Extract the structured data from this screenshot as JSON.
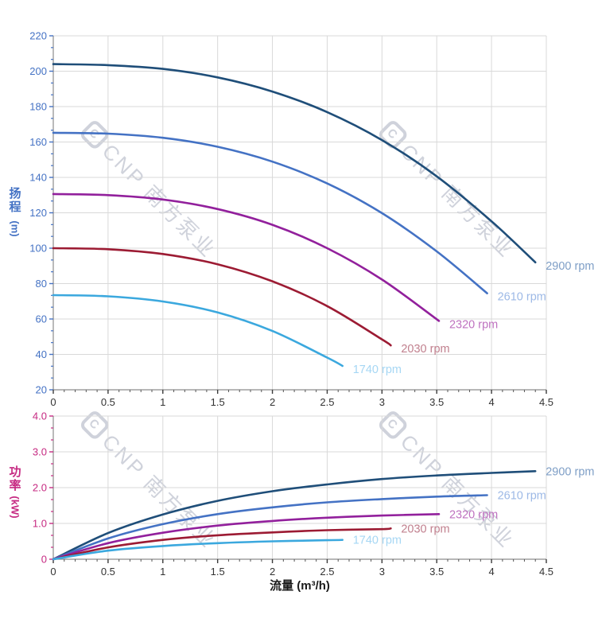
{
  "watermark": {
    "logo_letter": "C",
    "text": "CNP 南方泵业"
  },
  "chart_data": [
    {
      "type": "line",
      "name": "head-vs-flow",
      "title": "",
      "ylabel": {
        "line1": "扬",
        "line2": "程",
        "unit": "(m)"
      },
      "xlabel": "",
      "xlim": [
        0,
        4.5
      ],
      "ylim": [
        20,
        220
      ],
      "grid": true,
      "legend_position": "curve-end-labels",
      "axis_y_color": "#4472C4",
      "x_tick_values": [
        0,
        0.5,
        1,
        1.5,
        2,
        2.5,
        3,
        3.5,
        4,
        4.5
      ],
      "x_tick_labels": [
        "0",
        "0.5",
        "1",
        "1.5",
        "2",
        "2.5",
        "3",
        "3.5",
        "4",
        "4.5"
      ],
      "x_minor_step": 0.1,
      "y_tick_values": [
        220,
        200,
        180,
        160,
        140,
        120,
        100,
        80,
        60,
        40,
        20
      ],
      "y_tick_labels": [
        "220",
        "200",
        "180",
        "160",
        "140",
        "120",
        "100",
        "80",
        "60",
        "40",
        "20"
      ],
      "y_minor_divisions": 3,
      "series": [
        {
          "name": "2900 rpm",
          "color": "#1F4E79",
          "label_color": "#7E9EC6",
          "x": [
            0,
            0.5,
            1,
            1.5,
            2,
            2.5,
            3,
            3.5,
            4,
            4.4
          ],
          "y": [
            204,
            203.4,
            201.3,
            196.5,
            188.5,
            176.9,
            161.1,
            140.6,
            115.2,
            92
          ]
        },
        {
          "name": "2610 rpm",
          "color": "#4472C4",
          "label_color": "#9DB9E6",
          "x": [
            0,
            0.5,
            1,
            1.5,
            2,
            2.5,
            3,
            3.5,
            3.96
          ],
          "y": [
            165.2,
            164.7,
            162.4,
            157.3,
            148.9,
            136.6,
            119.8,
            98.2,
            74.5
          ]
        },
        {
          "name": "2320 rpm",
          "color": "#92209C",
          "label_color": "#BF72C0",
          "x": [
            0,
            0.5,
            1,
            1.5,
            2,
            2.5,
            3,
            3.52
          ],
          "y": [
            130.6,
            130,
            127.5,
            122.1,
            113.2,
            100,
            82.3,
            58.9
          ]
        },
        {
          "name": "2030 rpm",
          "color": "#9C1B33",
          "label_color": "#C1808E",
          "x": [
            0,
            0.5,
            1,
            1.5,
            2,
            2.5,
            3,
            3.08
          ],
          "y": [
            100,
            99.4,
            96.7,
            90.9,
            81.3,
            67.3,
            48.5,
            45.1
          ]
        },
        {
          "name": "1740 rpm",
          "color": "#3BA8DE",
          "label_color": "#A6D7F4",
          "x": [
            0,
            0.5,
            1,
            1.5,
            2,
            2.5,
            2.64
          ],
          "y": [
            73.5,
            72.8,
            69.9,
            63.7,
            53.2,
            38.2,
            33.5
          ]
        }
      ]
    },
    {
      "type": "line",
      "name": "power-vs-flow",
      "title": "",
      "ylabel": {
        "line1": "功",
        "line2": "率",
        "unit": "(kW)"
      },
      "xlabel": "流量 (m³/h)",
      "xlim": [
        0,
        4.5
      ],
      "ylim": [
        0,
        4
      ],
      "grid": true,
      "legend_position": "curve-end-labels",
      "axis_y_color": "#C62A82",
      "x_tick_values": [
        0,
        0.5,
        1,
        1.5,
        2,
        2.5,
        3,
        3.5,
        4,
        4.5
      ],
      "x_tick_labels": [
        "0",
        "0.5",
        "1",
        "1.5",
        "2",
        "2.5",
        "3",
        "3.5",
        "4",
        "4.5"
      ],
      "x_minor_step": 0.1,
      "y_tick_values": [
        4,
        3,
        2,
        1,
        0
      ],
      "y_tick_labels": [
        "4.0",
        "3.0",
        "2.0",
        "1.0",
        "0"
      ],
      "y_minor_divisions": 3,
      "series": [
        {
          "name": "2900 rpm",
          "color": "#1F4E79",
          "label_color": "#7E9EC6",
          "x": [
            0,
            0.5,
            1,
            1.5,
            2,
            2.5,
            3,
            3.5,
            4,
            4.4
          ],
          "y": [
            0,
            0.73,
            1.25,
            1.63,
            1.9,
            2.09,
            2.24,
            2.34,
            2.41,
            2.46
          ]
        },
        {
          "name": "2610 rpm",
          "color": "#4472C4",
          "label_color": "#9DB9E6",
          "x": [
            0,
            0.5,
            1,
            1.5,
            2,
            2.5,
            3,
            3.5,
            3.96
          ],
          "y": [
            0,
            0.58,
            0.98,
            1.26,
            1.45,
            1.59,
            1.68,
            1.75,
            1.79
          ]
        },
        {
          "name": "2320 rpm",
          "color": "#92209C",
          "label_color": "#BF72C0",
          "x": [
            0,
            0.5,
            1,
            1.5,
            2,
            2.5,
            3,
            3.52
          ],
          "y": [
            0,
            0.45,
            0.74,
            0.94,
            1.07,
            1.16,
            1.22,
            1.26
          ]
        },
        {
          "name": "2030 rpm",
          "color": "#9C1B33",
          "label_color": "#C1808E",
          "x": [
            0,
            0.5,
            1,
            1.5,
            2,
            2.5,
            3,
            3.08
          ],
          "y": [
            0,
            0.33,
            0.54,
            0.67,
            0.75,
            0.81,
            0.84,
            0.86
          ]
        },
        {
          "name": "1740 rpm",
          "color": "#3BA8DE",
          "label_color": "#A6D7F4",
          "x": [
            0,
            0.5,
            1,
            1.5,
            2,
            2.5,
            2.64
          ],
          "y": [
            0,
            0.24,
            0.37,
            0.45,
            0.5,
            0.53,
            0.54
          ]
        }
      ]
    }
  ]
}
